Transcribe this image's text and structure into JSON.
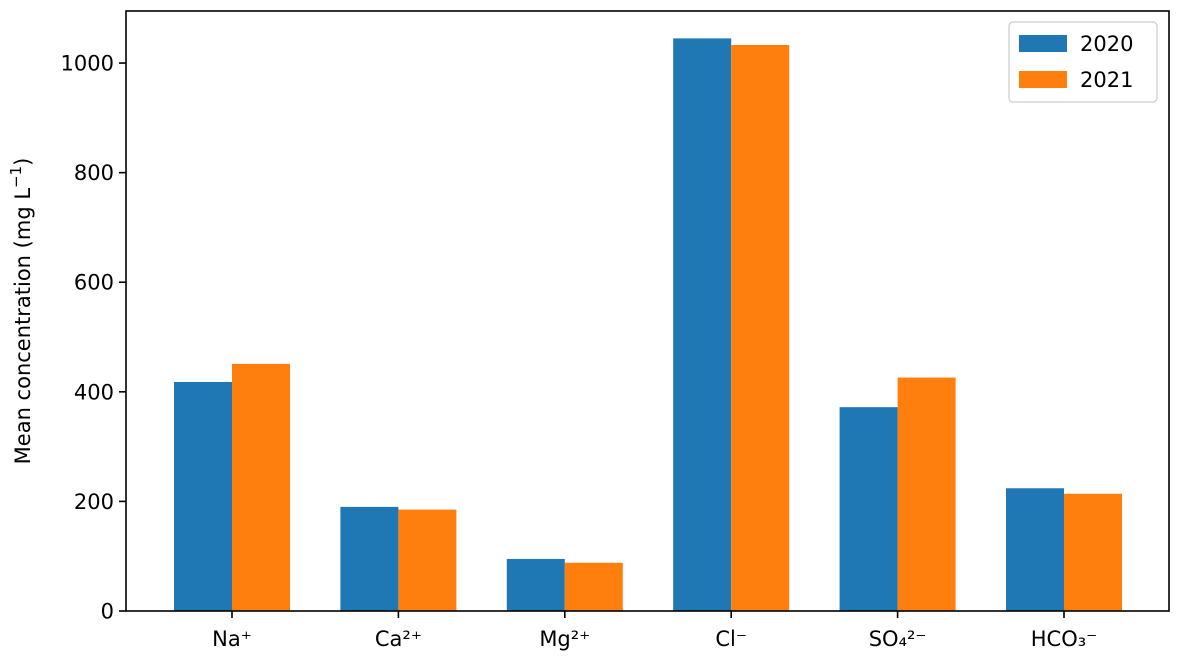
{
  "chart_data": {
    "type": "bar",
    "title": "",
    "xlabel": "",
    "ylabel": "Mean concentration (mg L",
    "ylabel_unit_exponent": "−1",
    "ylabel_close": ")",
    "categories": [
      "Na⁺",
      "Ca²⁺",
      "Mg²⁺",
      "Cl⁻",
      "SO₄²⁻",
      "HCO₃⁻"
    ],
    "series": [
      {
        "name": "2020",
        "color": "#1f77b4",
        "values": [
          418,
          190,
          95,
          1045,
          372,
          224
        ]
      },
      {
        "name": "2021",
        "color": "#ff7f0e",
        "values": [
          451,
          185,
          88,
          1033,
          426,
          214
        ]
      }
    ],
    "ylim": [
      0,
      1095
    ],
    "yticks": [
      0,
      200,
      400,
      600,
      800,
      1000
    ],
    "grid": false,
    "legend_position": "top-right"
  }
}
